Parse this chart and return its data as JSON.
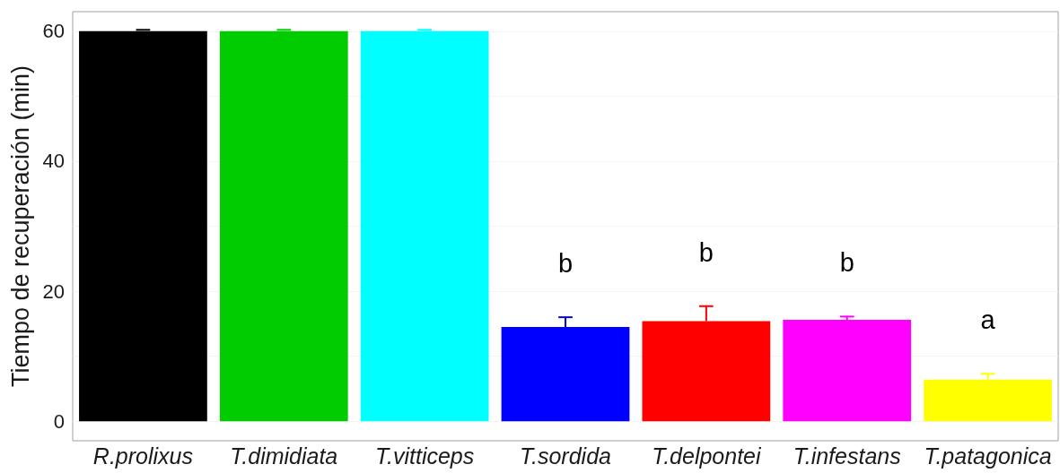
{
  "chart_data": {
    "type": "bar",
    "ylabel": "Tiempo de recuperación (min)",
    "categories": [
      "R.prolixus",
      "T.dimidiata",
      "T.vitticeps",
      "T.sordida",
      "T.delpontei",
      "T.infestans",
      "T.patagonica"
    ],
    "values": [
      60,
      60,
      60,
      14.5,
      15.4,
      15.6,
      6.4
    ],
    "colors": [
      "#000000",
      "#00cc00",
      "#00ffff",
      "#0000ff",
      "#ff0000",
      "#ff00ff",
      "#ffff00"
    ],
    "errors": [
      [
        60,
        60.2
      ],
      [
        60,
        60.2
      ],
      [
        60,
        60.2
      ],
      [
        14.5,
        16
      ],
      [
        15.4,
        17.7
      ],
      [
        15.6,
        16.1
      ],
      [
        6.4,
        7.3
      ]
    ],
    "ylim": [
      -3,
      63
    ],
    "yticks": [
      0,
      {
        "value": 10,
        "label": null
      },
      20,
      {
        "value": 30,
        "label": null
      },
      40,
      {
        "value": 50,
        "label": null
      },
      60
    ],
    "grid": "y",
    "annotations": [
      "b",
      "b",
      "b",
      "a"
    ]
  }
}
